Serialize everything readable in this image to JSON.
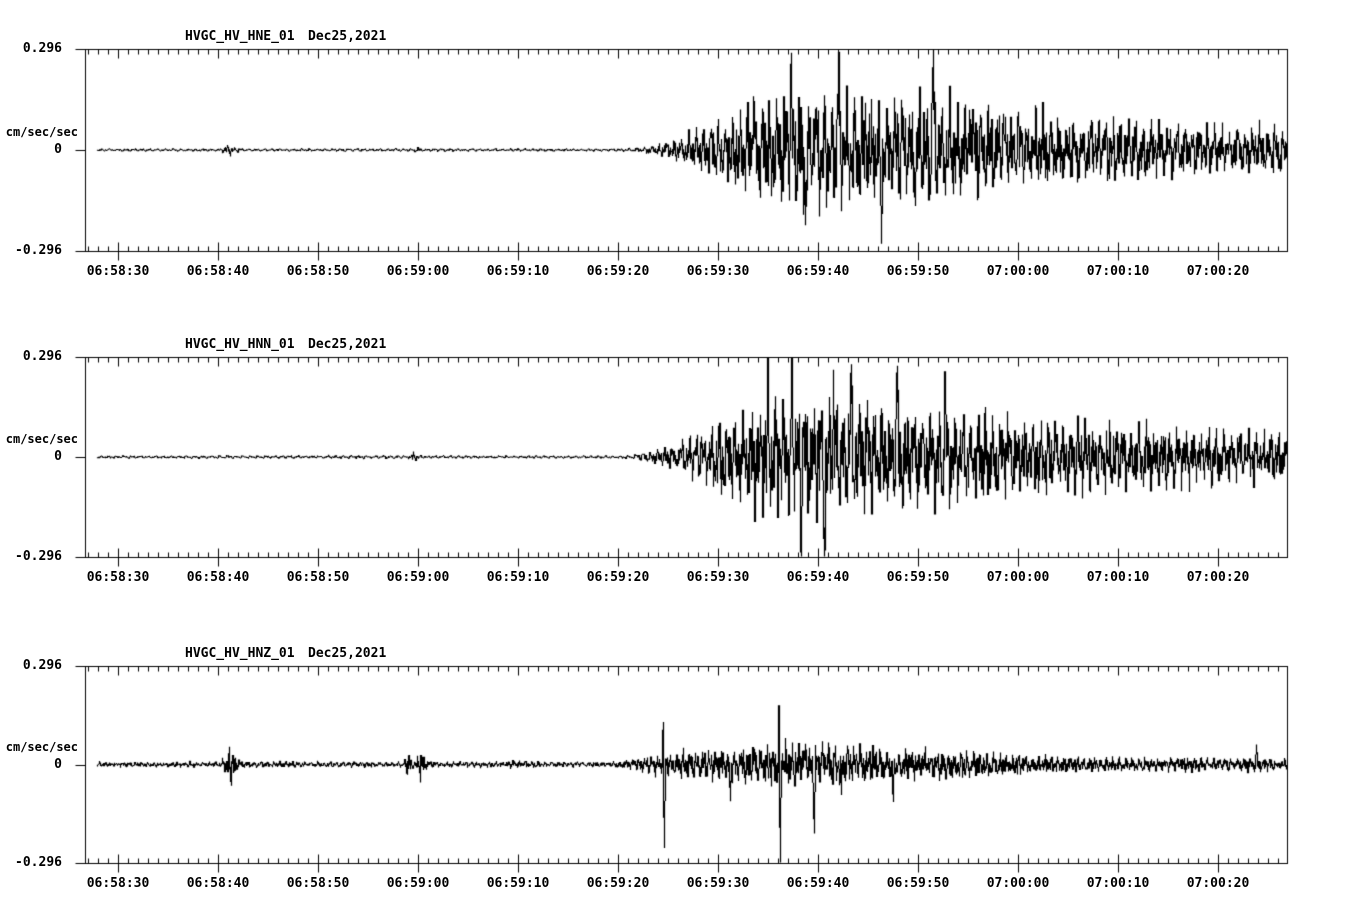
{
  "page": {
    "background": "#ffffff",
    "foreground": "#000000",
    "trace_color": "#000000"
  },
  "axis": {
    "ylabel": "cm/sec/sec",
    "y_tick_labels": [
      "0.296",
      "0",
      "-0.296"
    ],
    "ylim": [
      -0.296,
      0.296
    ],
    "x_major_interval_s": 10,
    "x_minor_interval_s": 1,
    "x_first_major_offset_s": 3.3,
    "x_span_s": 120.2,
    "trace_start_s": 1.2
  },
  "chart_data": [
    {
      "type": "line",
      "kind": "seismogram",
      "title": "HVGC_HV_HNE_01",
      "date": "Dec25,2021",
      "ylabel": "cm/sec/sec",
      "y_ticks": [
        "0.296",
        "0",
        "-0.296"
      ],
      "ylim": [
        -0.296,
        0.296
      ],
      "x_ticks": [
        "06:58:30",
        "06:58:40",
        "06:58:50",
        "06:59:00",
        "06:59:10",
        "06:59:20",
        "06:59:30",
        "06:59:40",
        "06:59:50",
        "07:00:00",
        "07:00:10",
        "07:00:20"
      ],
      "seed": 101,
      "noise": {
        "freqs": [
          1.3,
          2.7,
          5.3
        ],
        "amps": [
          0.45,
          0.33,
          0.28
        ],
        "jitter": 0.5,
        "drift": 0.28
      },
      "envelope": [
        [
          0,
          0.004
        ],
        [
          13.5,
          0.004
        ],
        [
          13.9,
          0.012
        ],
        [
          14.4,
          0.016
        ],
        [
          15.0,
          0.008
        ],
        [
          15.6,
          0.004
        ],
        [
          32.8,
          0.004
        ],
        [
          33.2,
          0.008
        ],
        [
          33.8,
          0.004
        ],
        [
          53,
          0.004
        ],
        [
          55,
          0.006
        ],
        [
          57,
          0.014
        ],
        [
          59,
          0.028
        ],
        [
          61,
          0.05
        ],
        [
          63,
          0.075
        ],
        [
          65,
          0.1
        ],
        [
          67,
          0.12
        ],
        [
          69,
          0.14
        ],
        [
          71,
          0.15
        ],
        [
          73,
          0.145
        ],
        [
          75,
          0.15
        ],
        [
          77,
          0.145
        ],
        [
          79,
          0.135
        ],
        [
          81,
          0.13
        ],
        [
          83,
          0.135
        ],
        [
          85,
          0.14
        ],
        [
          87,
          0.125
        ],
        [
          89,
          0.115
        ],
        [
          91,
          0.105
        ],
        [
          93,
          0.1
        ],
        [
          95,
          0.095
        ],
        [
          97,
          0.09
        ],
        [
          100,
          0.082
        ],
        [
          103,
          0.078
        ],
        [
          106,
          0.072
        ],
        [
          109,
          0.068
        ],
        [
          112,
          0.064
        ],
        [
          115,
          0.062
        ],
        [
          118,
          0.065
        ],
        [
          120.2,
          0.06
        ]
      ],
      "spikes": [
        [
          66.8,
          0.18,
          0.15
        ],
        [
          70.6,
          0.2,
          0.15
        ],
        [
          72.1,
          -0.2,
          0.15
        ],
        [
          75.3,
          0.2,
          0.15
        ],
        [
          79.6,
          -0.19,
          0.15
        ],
        [
          84.8,
          0.265,
          0.18
        ],
        [
          88.5,
          0.16,
          0.15
        ]
      ]
    },
    {
      "type": "line",
      "kind": "seismogram",
      "title": "HVGC_HV_HNN_01",
      "date": "Dec25,2021",
      "ylabel": "cm/sec/sec",
      "y_ticks": [
        "0.296",
        "0",
        "-0.296"
      ],
      "ylim": [
        -0.296,
        0.296
      ],
      "x_ticks": [
        "06:58:30",
        "06:58:40",
        "06:58:50",
        "06:59:00",
        "06:59:10",
        "06:59:20",
        "06:59:30",
        "06:59:40",
        "06:59:50",
        "07:00:00",
        "07:00:10",
        "07:00:20"
      ],
      "seed": 202,
      "noise": {
        "freqs": [
          1.3,
          2.7,
          5.3
        ],
        "amps": [
          0.45,
          0.33,
          0.28
        ],
        "jitter": 0.5,
        "drift": 0.28
      },
      "envelope": [
        [
          0,
          0.004
        ],
        [
          13.9,
          0.004
        ],
        [
          14.2,
          0.009
        ],
        [
          14.8,
          0.004
        ],
        [
          32.4,
          0.005
        ],
        [
          32.8,
          0.016
        ],
        [
          33.4,
          0.006
        ],
        [
          34.0,
          0.004
        ],
        [
          53,
          0.004
        ],
        [
          55,
          0.007
        ],
        [
          57,
          0.018
        ],
        [
          59,
          0.035
        ],
        [
          61,
          0.06
        ],
        [
          63,
          0.085
        ],
        [
          65,
          0.115
        ],
        [
          67,
          0.135
        ],
        [
          69,
          0.15
        ],
        [
          71,
          0.16
        ],
        [
          73,
          0.15
        ],
        [
          75,
          0.145
        ],
        [
          77,
          0.14
        ],
        [
          79,
          0.133
        ],
        [
          81,
          0.128
        ],
        [
          83,
          0.122
        ],
        [
          85,
          0.118
        ],
        [
          87,
          0.113
        ],
        [
          89,
          0.11
        ],
        [
          91,
          0.108
        ],
        [
          93,
          0.104
        ],
        [
          95,
          0.1
        ],
        [
          97,
          0.098
        ],
        [
          100,
          0.092
        ],
        [
          103,
          0.086
        ],
        [
          106,
          0.08
        ],
        [
          109,
          0.076
        ],
        [
          112,
          0.072
        ],
        [
          115,
          0.07
        ],
        [
          118,
          0.066
        ],
        [
          120.2,
          0.062
        ]
      ],
      "spikes": [
        [
          68.3,
          0.19,
          0.15
        ],
        [
          70.7,
          0.28,
          0.15
        ],
        [
          71.6,
          -0.24,
          0.15
        ],
        [
          73.9,
          -0.25,
          0.18
        ],
        [
          74.8,
          0.2,
          0.12
        ],
        [
          76.6,
          0.21,
          0.15
        ],
        [
          81.2,
          0.235,
          0.15
        ],
        [
          86.0,
          0.19,
          0.15
        ]
      ]
    },
    {
      "type": "line",
      "kind": "seismogram",
      "title": "HVGC_HV_HNZ_01",
      "date": "Dec25,2021",
      "ylabel": "cm/sec/sec",
      "y_ticks": [
        "0.296",
        "0",
        "-0.296"
      ],
      "ylim": [
        -0.296,
        0.296
      ],
      "x_ticks": [
        "06:58:30",
        "06:58:40",
        "06:58:50",
        "06:59:00",
        "06:59:10",
        "06:59:20",
        "06:59:30",
        "06:59:40",
        "06:59:50",
        "07:00:00",
        "07:00:10",
        "07:00:20"
      ],
      "seed": 303,
      "noise": {
        "freqs": [
          1.6,
          3.1,
          6.1
        ],
        "amps": [
          0.4,
          0.32,
          0.3
        ],
        "jitter": 0.6,
        "drift": 0.3
      },
      "envelope": [
        [
          0,
          0.007
        ],
        [
          13.6,
          0.007
        ],
        [
          13.9,
          0.02
        ],
        [
          14.1,
          0.058
        ],
        [
          14.5,
          0.062
        ],
        [
          14.9,
          0.04
        ],
        [
          15.3,
          0.012
        ],
        [
          16,
          0.008
        ],
        [
          31.9,
          0.007
        ],
        [
          32.2,
          0.04
        ],
        [
          32.6,
          0.015
        ],
        [
          33.1,
          0.01
        ],
        [
          33.5,
          0.045
        ],
        [
          33.9,
          0.02
        ],
        [
          34.4,
          0.009
        ],
        [
          35.2,
          0.007
        ],
        [
          41,
          0.008
        ],
        [
          43,
          0.011
        ],
        [
          45,
          0.008
        ],
        [
          50,
          0.007
        ],
        [
          53,
          0.008
        ],
        [
          55,
          0.015
        ],
        [
          57,
          0.025
        ],
        [
          59,
          0.032
        ],
        [
          61,
          0.036
        ],
        [
          63,
          0.04
        ],
        [
          65,
          0.044
        ],
        [
          67,
          0.048
        ],
        [
          69,
          0.052
        ],
        [
          71,
          0.055
        ],
        [
          73,
          0.052
        ],
        [
          75,
          0.05
        ],
        [
          77,
          0.047
        ],
        [
          79,
          0.045
        ],
        [
          81,
          0.042
        ],
        [
          83,
          0.04
        ],
        [
          85,
          0.037
        ],
        [
          87,
          0.035
        ],
        [
          89,
          0.032
        ],
        [
          91,
          0.03
        ],
        [
          93,
          0.027
        ],
        [
          95,
          0.025
        ],
        [
          97,
          0.023
        ],
        [
          100,
          0.02
        ],
        [
          103,
          0.018
        ],
        [
          106,
          0.017
        ],
        [
          109,
          0.017
        ],
        [
          111,
          0.02
        ],
        [
          113,
          0.016
        ],
        [
          115,
          0.016
        ],
        [
          117,
          0.02
        ],
        [
          118,
          0.016
        ],
        [
          120.2,
          0.014
        ]
      ],
      "spikes": [
        [
          57.8,
          0.16,
          0.1
        ],
        [
          57.9,
          -0.27,
          0.12
        ],
        [
          64.5,
          -0.1,
          0.1
        ],
        [
          69.4,
          0.17,
          0.1
        ],
        [
          69.5,
          -0.3,
          0.12
        ],
        [
          72.9,
          -0.16,
          0.12
        ],
        [
          75.6,
          -0.11,
          0.1
        ],
        [
          80.8,
          -0.12,
          0.1
        ],
        [
          117.1,
          0.045,
          0.1
        ]
      ]
    }
  ]
}
